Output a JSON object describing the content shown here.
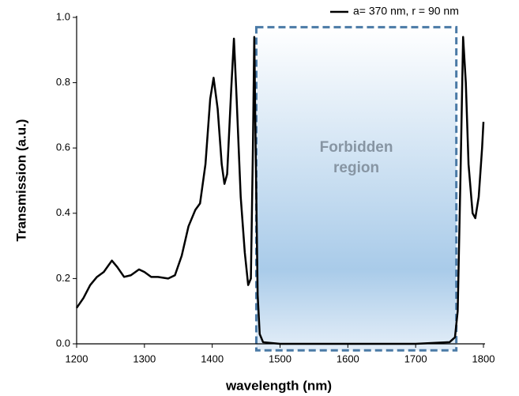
{
  "chart_data": {
    "type": "line",
    "xlabel": "wavelength (nm)",
    "ylabel": "Transmission (a.u.)",
    "x": [
      1200,
      1210,
      1220,
      1230,
      1240,
      1252,
      1260,
      1270,
      1280,
      1292,
      1300,
      1310,
      1320,
      1335,
      1345,
      1355,
      1365,
      1375,
      1382,
      1390,
      1397,
      1402,
      1408,
      1414,
      1418,
      1422,
      1428,
      1432,
      1436,
      1442,
      1448,
      1453,
      1457,
      1460,
      1462,
      1464,
      1467,
      1470,
      1475,
      1500,
      1600,
      1700,
      1750,
      1758,
      1762,
      1766,
      1770,
      1774,
      1778,
      1784,
      1788,
      1793,
      1798,
      1800
    ],
    "series": [
      {
        "name": "a= 370 nm, r = 90 nm",
        "color": "#000000",
        "values": [
          0.11,
          0.14,
          0.18,
          0.205,
          0.22,
          0.255,
          0.235,
          0.205,
          0.21,
          0.228,
          0.22,
          0.205,
          0.205,
          0.2,
          0.21,
          0.27,
          0.36,
          0.41,
          0.43,
          0.55,
          0.75,
          0.815,
          0.72,
          0.55,
          0.49,
          0.52,
          0.78,
          0.935,
          0.75,
          0.45,
          0.28,
          0.18,
          0.2,
          0.6,
          0.94,
          0.6,
          0.15,
          0.03,
          0.005,
          0,
          0,
          0,
          0.005,
          0.02,
          0.1,
          0.5,
          0.94,
          0.8,
          0.55,
          0.4,
          0.385,
          0.45,
          0.6,
          0.68
        ]
      }
    ],
    "xlim": [
      1200,
      1800
    ],
    "xticks": [
      1200,
      1300,
      1400,
      1500,
      1600,
      1700,
      1800
    ],
    "ylim": [
      0,
      1
    ],
    "yticks": [
      {
        "value": 0,
        "label": "0.0"
      },
      0.2,
      0.4,
      0.6,
      0.8,
      {
        "value": 1,
        "label": "1.0"
      }
    ],
    "legend": "top-right",
    "annotation": {
      "text": "Forbidden region",
      "xrange": [
        1465,
        1760
      ],
      "yrange": [
        -0.02,
        0.97
      ],
      "color": "#4a7aa6"
    }
  }
}
